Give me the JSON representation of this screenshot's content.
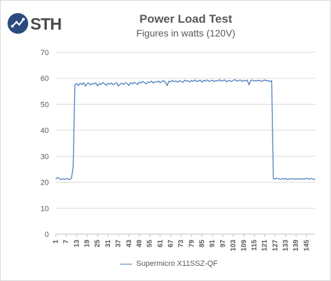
{
  "brand": {
    "logo_text": "STH"
  },
  "chart_data": {
    "type": "line",
    "title": "Power Load Test",
    "subtitle": "Figures in watts (120V)",
    "xlabel": "",
    "ylabel": "",
    "ylim": [
      0,
      70
    ],
    "yticks": [
      0,
      10,
      20,
      30,
      40,
      50,
      60,
      70
    ],
    "xtick_labels": [
      "1",
      "7",
      "13",
      "19",
      "25",
      "31",
      "37",
      "43",
      "49",
      "55",
      "61",
      "67",
      "73",
      "79",
      "85",
      "91",
      "97",
      "103",
      "109",
      "115",
      "121",
      "127",
      "133",
      "139",
      "145"
    ],
    "grid": true,
    "legend": "bottom",
    "colors": {
      "series": "#4a7ebb",
      "grid": "#d9d9d9",
      "axis": "#bfbfbf"
    },
    "series": [
      {
        "name": "Supermicro X11SSZ-QF",
        "x": [
          1,
          2,
          3,
          4,
          5,
          6,
          7,
          8,
          9,
          10,
          11,
          12,
          13,
          14,
          15,
          16,
          17,
          18,
          19,
          20,
          21,
          22,
          23,
          24,
          25,
          26,
          27,
          28,
          29,
          30,
          31,
          32,
          33,
          34,
          35,
          36,
          37,
          38,
          39,
          40,
          41,
          42,
          43,
          44,
          45,
          46,
          47,
          48,
          49,
          50,
          51,
          52,
          53,
          54,
          55,
          56,
          57,
          58,
          59,
          60,
          61,
          62,
          63,
          64,
          65,
          66,
          67,
          68,
          69,
          70,
          71,
          72,
          73,
          74,
          75,
          76,
          77,
          78,
          79,
          80,
          81,
          82,
          83,
          84,
          85,
          86,
          87,
          88,
          89,
          90,
          91,
          92,
          93,
          94,
          95,
          96,
          97,
          98,
          99,
          100,
          101,
          102,
          103,
          104,
          105,
          106,
          107,
          108,
          109,
          110,
          111,
          112,
          113,
          114,
          115,
          116,
          117,
          118,
          119,
          120,
          121,
          122,
          123,
          124,
          125,
          126,
          127,
          128,
          129,
          130,
          131,
          132,
          133,
          134,
          135,
          136,
          137,
          138,
          139,
          140,
          141,
          142,
          143,
          144,
          145,
          146,
          147,
          148,
          149,
          150
        ],
        "values": [
          21.2,
          21.8,
          21.5,
          21.0,
          21.3,
          21.1,
          21.4,
          21.2,
          21.0,
          21.5,
          25.8,
          57.5,
          58.0,
          57.2,
          58.1,
          57.6,
          58.3,
          57.0,
          57.9,
          58.2,
          57.4,
          58.0,
          57.8,
          58.3,
          57.1,
          58.0,
          57.6,
          58.4,
          57.9,
          57.3,
          58.1,
          57.7,
          58.2,
          57.5,
          57.9,
          58.3,
          57.0,
          57.8,
          58.1,
          57.6,
          58.4,
          58.0,
          57.2,
          58.3,
          57.8,
          58.5,
          58.1,
          57.6,
          58.6,
          58.2,
          58.8,
          58.3,
          57.9,
          58.6,
          58.4,
          58.9,
          58.2,
          58.7,
          58.5,
          59.0,
          58.3,
          58.8,
          59.1,
          58.4,
          57.2,
          58.9,
          58.6,
          59.2,
          58.7,
          59.0,
          58.5,
          59.1,
          58.8,
          58.4,
          59.3,
          58.9,
          59.1,
          58.6,
          59.2,
          58.8,
          59.4,
          58.7,
          59.0,
          59.3,
          58.5,
          59.2,
          58.9,
          59.4,
          58.8,
          59.1,
          59.3,
          58.7,
          59.2,
          59.0,
          59.5,
          58.9,
          59.1,
          59.4,
          58.6,
          59.2,
          59.0,
          58.8,
          59.3,
          59.5,
          58.9,
          59.1,
          59.4,
          58.8,
          59.2,
          59.0,
          59.3,
          57.5,
          59.1,
          59.4,
          58.9,
          59.2,
          59.0,
          59.3,
          58.8,
          59.1,
          59.4,
          59.0,
          59.2,
          58.7,
          59.1,
          21.4,
          21.2,
          21.5,
          21.3,
          21.1,
          21.4,
          21.2,
          21.5,
          21.0,
          21.3,
          21.2,
          21.4,
          21.1,
          21.3,
          21.2,
          21.4,
          21.1,
          21.3,
          21.2,
          21.5,
          21.3,
          21.2,
          21.4,
          21.1,
          21.2
        ]
      }
    ]
  }
}
